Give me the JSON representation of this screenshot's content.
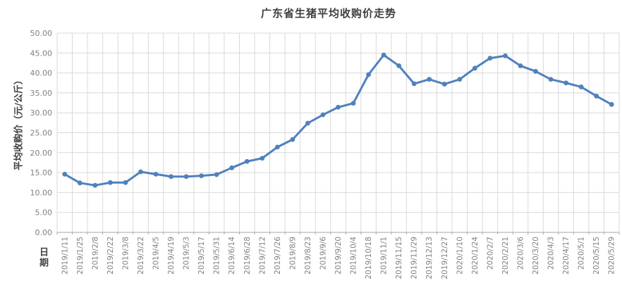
{
  "chart_data": {
    "type": "line",
    "title": "广东省生猪平均收购价走势",
    "xlabel": "日期",
    "ylabel": "平均收购价（元/公斤）",
    "categories": [
      "2019/1/11",
      "2019/1/25",
      "2019/2/8",
      "2019/2/22",
      "2019/3/8",
      "2019/3/22",
      "2019/4/5",
      "2019/4/19",
      "2019/5/3",
      "2019/5/17",
      "2019/5/31",
      "2019/6/14",
      "2019/6/28",
      "2019/7/12",
      "2019/7/26",
      "2019/8/9",
      "2019/8/23",
      "2019/9/6",
      "2019/9/20",
      "2019/10/4",
      "2019/10/18",
      "2019/11/1",
      "2019/11/15",
      "2019/11/29",
      "2019/12/13",
      "2019/12/27",
      "2020/1/10",
      "2020/1/24",
      "2020/2/7",
      "2020/2/21",
      "2020/3/6",
      "2020/3/20",
      "2020/4/3",
      "2020/4/17",
      "2020/5/1",
      "2020/5/15",
      "2020/5/29"
    ],
    "values": [
      14.6,
      12.4,
      11.8,
      12.5,
      12.5,
      15.2,
      14.6,
      14.0,
      14.0,
      14.2,
      14.5,
      16.2,
      17.8,
      18.6,
      21.4,
      23.3,
      27.4,
      29.5,
      31.4,
      32.4,
      39.6,
      44.5,
      41.8,
      37.3,
      38.4,
      37.2,
      38.4,
      41.2,
      43.7,
      44.3,
      41.8,
      40.4,
      38.4,
      37.5,
      36.5,
      34.2,
      32.1
    ],
    "ylim": [
      0,
      50
    ],
    "ytick_step": 5,
    "ytick_decimals": 2,
    "grid": "both",
    "legend": "none",
    "line_color": "#4f81bd",
    "marker": "circle"
  },
  "colors": {
    "gridline": "#d9d9d9",
    "axis_line": "#a6a6a6",
    "tick_text": "#808080",
    "title_text": "#404040",
    "background": "#ffffff"
  }
}
